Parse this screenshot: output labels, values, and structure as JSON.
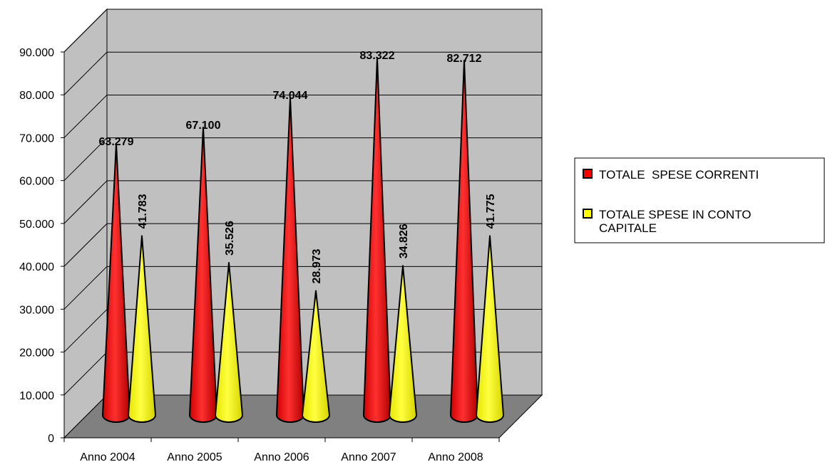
{
  "chart_data": {
    "type": "bar",
    "style": "3d-cone",
    "categories": [
      "Anno 2004",
      "Anno 2005",
      "Anno 2006",
      "Anno 2007",
      "Anno 2008"
    ],
    "series": [
      {
        "name": "TOTALE  SPESE CORRENTI",
        "color": "#ff0000",
        "values": [
          63279,
          67100,
          74044,
          83322,
          82712
        ],
        "labels": [
          "63.279",
          "67.100",
          "74.044",
          "83.322",
          "82.712"
        ]
      },
      {
        "name": "TOTALE SPESE IN CONTO CAPITALE",
        "legend_lines": [
          "TOTALE SPESE IN CONTO",
          "CAPITALE"
        ],
        "color": "#ffff00",
        "values": [
          41783,
          35526,
          28973,
          34826,
          41775
        ],
        "labels": [
          "41.783",
          "35.526",
          "28.973",
          "34.826",
          "41.775"
        ]
      }
    ],
    "ylim": [
      0,
      90000
    ],
    "yticks": [
      0,
      10000,
      20000,
      30000,
      40000,
      50000,
      60000,
      70000,
      80000,
      90000
    ],
    "ytick_labels": [
      "0",
      "10.000",
      "20.000",
      "30.000",
      "40.000",
      "50.000",
      "60.000",
      "70.000",
      "80.000",
      "90.000"
    ],
    "grid": true,
    "wall_color": "#c0c0c0",
    "floor_color": "#808080",
    "legend_position": "right"
  }
}
